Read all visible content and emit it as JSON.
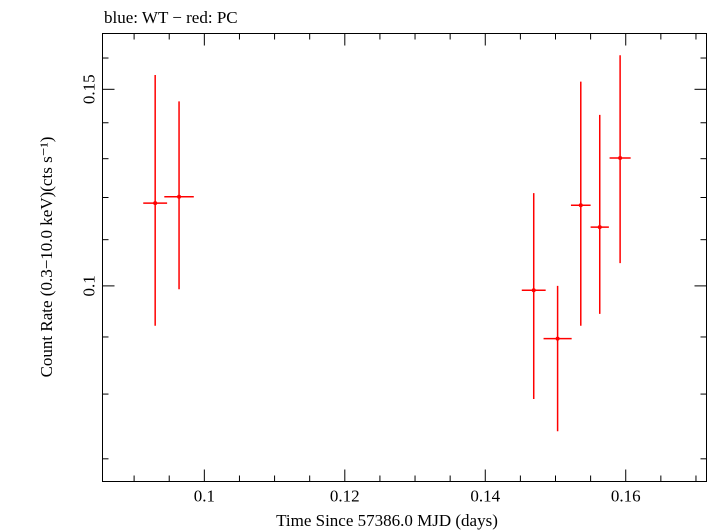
{
  "title": "blue: WT − red: PC",
  "xlabel": "Time Since 57386.0 MJD (days)",
  "ylabel": "Count Rate (0.3−10.0 keV)(cts s⁻¹)",
  "colors": {
    "pc": "#ff0000",
    "axis": "#000000"
  },
  "chart_data": {
    "type": "scatter",
    "title": "blue: WT − red: PC",
    "xlabel": "Time Since 57386.0 MJD (days)",
    "ylabel": "Count Rate (0.3−10.0 keV)(cts s⁻¹)",
    "xlim": [
      0.0855,
      0.1715
    ],
    "ylim": [
      0.0668,
      0.1683
    ],
    "y_scale": "log",
    "grid": false,
    "x_ticks": [
      {
        "value": 0.1,
        "label": "0.1"
      },
      {
        "value": 0.12,
        "label": "0.12"
      },
      {
        "value": 0.14,
        "label": "0.14"
      },
      {
        "value": 0.16,
        "label": "0.16"
      }
    ],
    "y_ticks": [
      {
        "value": 0.1,
        "label": "0.1"
      },
      {
        "value": 0.15,
        "label": "0.15"
      }
    ],
    "series": [
      {
        "name": "PC",
        "color": "#ff0000",
        "points": [
          {
            "x": 0.093,
            "xerr": 0.0017,
            "y": 0.1186,
            "ylo": 0.0921,
            "yhi": 0.1545
          },
          {
            "x": 0.0964,
            "xerr": 0.0021,
            "y": 0.1202,
            "ylo": 0.0993,
            "yhi": 0.1463
          },
          {
            "x": 0.1469,
            "xerr": 0.0017,
            "y": 0.0991,
            "ylo": 0.0792,
            "yhi": 0.1211
          },
          {
            "x": 0.1503,
            "xerr": 0.002,
            "y": 0.0897,
            "ylo": 0.0741,
            "yhi": 0.1
          },
          {
            "x": 0.1536,
            "xerr": 0.0014,
            "y": 0.1181,
            "ylo": 0.0921,
            "yhi": 0.1524
          },
          {
            "x": 0.1563,
            "xerr": 0.0013,
            "y": 0.1129,
            "ylo": 0.0944,
            "yhi": 0.1423
          },
          {
            "x": 0.1592,
            "xerr": 0.0015,
            "y": 0.1302,
            "ylo": 0.1048,
            "yhi": 0.1609
          }
        ]
      }
    ]
  }
}
